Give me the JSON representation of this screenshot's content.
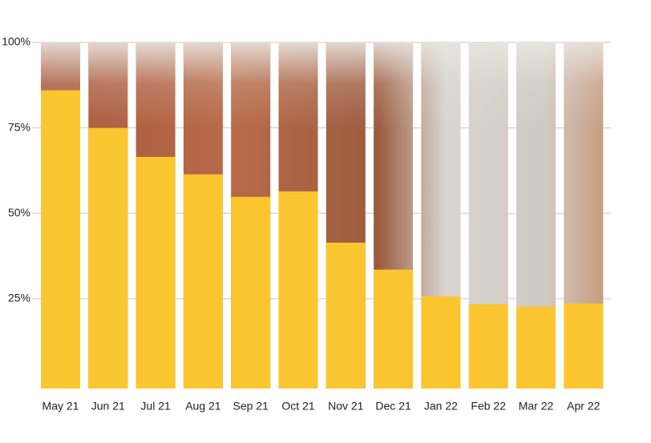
{
  "chart_data": {
    "type": "bar",
    "categories": [
      "May 21",
      "Jun 21",
      "Jul 21",
      "Aug 21",
      "Sep 21",
      "Oct 21",
      "Nov 21",
      "Dec 21",
      "Jan 22",
      "Feb 22",
      "Mar 22",
      "Apr 22"
    ],
    "values": [
      86,
      75,
      66.5,
      61.4,
      54.8,
      56.4,
      41.4,
      33.5,
      25.7,
      23.4,
      22.7,
      23.6
    ],
    "color": "#fcc631",
    "ylim": [
      0,
      100
    ],
    "yticks": [
      {
        "value": 25,
        "label": "25%"
      },
      {
        "value": 50,
        "label": "50%"
      },
      {
        "value": 75,
        "label": "75%"
      },
      {
        "value": 100,
        "label": "100%"
      }
    ],
    "grid": true
  }
}
